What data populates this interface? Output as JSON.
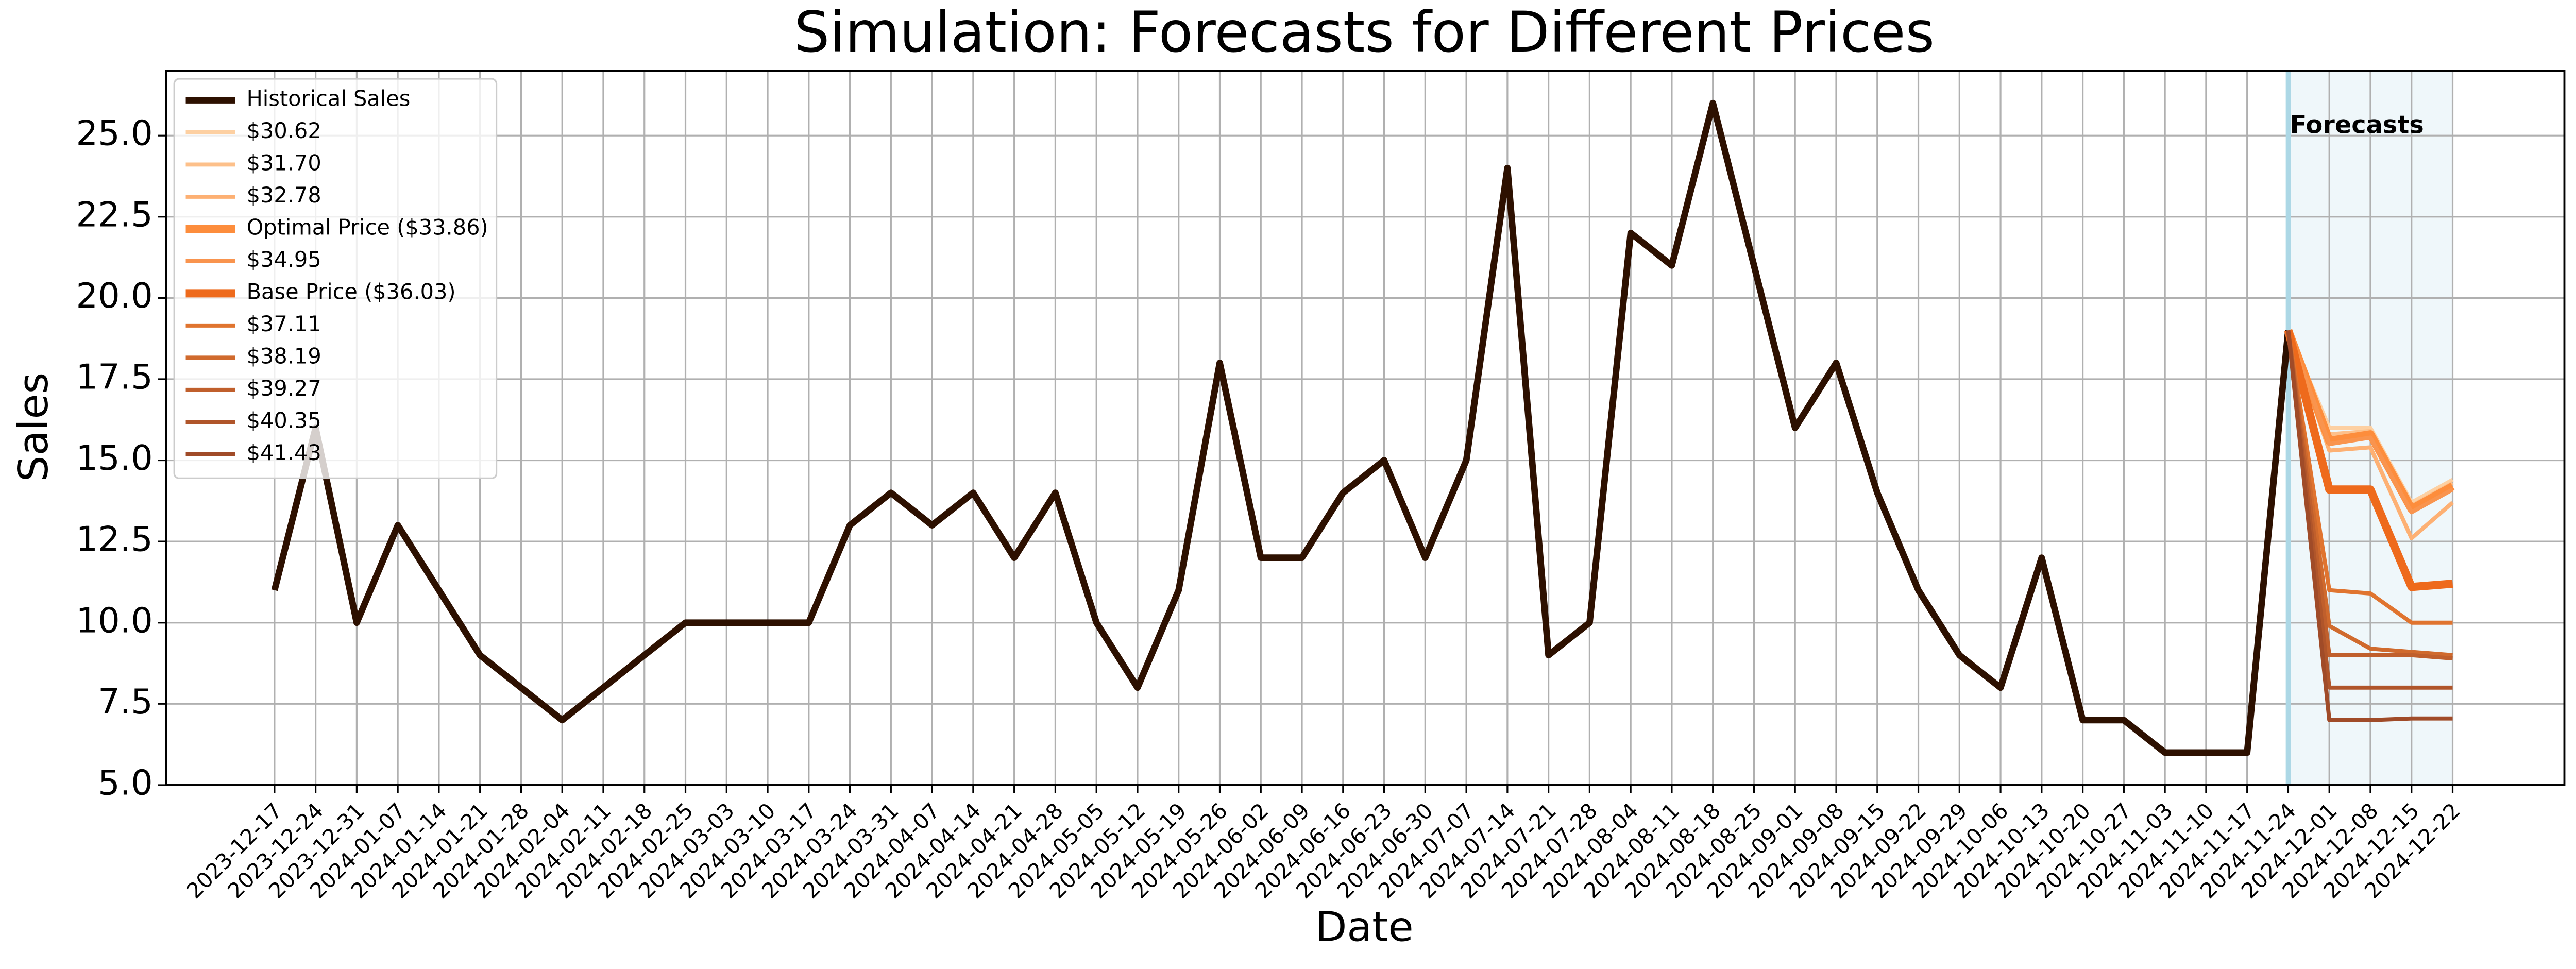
{
  "chart_data": {
    "type": "line",
    "title": "Simulation: Forecasts for Different Prices",
    "x_label": "Date",
    "y_label": "Sales",
    "annotation": "Forecasts",
    "forecast_start_index": 49,
    "forecast_end_index": 53,
    "forecast_region_color": "#add8e6",
    "grid": true,
    "legend": "upper left",
    "categories": [
      "2023-12-17",
      "2023-12-24",
      "2023-12-31",
      "2024-01-07",
      "2024-01-14",
      "2024-01-21",
      "2024-01-28",
      "2024-02-04",
      "2024-02-11",
      "2024-02-18",
      "2024-02-25",
      "2024-03-03",
      "2024-03-10",
      "2024-03-17",
      "2024-03-24",
      "2024-03-31",
      "2024-04-07",
      "2024-04-14",
      "2024-04-21",
      "2024-04-28",
      "2024-05-05",
      "2024-05-12",
      "2024-05-19",
      "2024-05-26",
      "2024-06-02",
      "2024-06-09",
      "2024-06-16",
      "2024-06-23",
      "2024-06-30",
      "2024-07-07",
      "2024-07-14",
      "2024-07-21",
      "2024-07-28",
      "2024-08-04",
      "2024-08-11",
      "2024-08-18",
      "2024-08-25",
      "2024-09-01",
      "2024-09-08",
      "2024-09-15",
      "2024-09-22",
      "2024-09-29",
      "2024-10-06",
      "2024-10-13",
      "2024-10-20",
      "2024-10-27",
      "2024-11-03",
      "2024-11-10",
      "2024-11-17",
      "2024-11-24",
      "2024-12-01",
      "2024-12-08",
      "2024-12-15",
      "2024-12-22"
    ],
    "ylim": [
      5,
      27
    ],
    "yticks": [
      {
        "value": 5,
        "label": "5.0"
      },
      {
        "value": 7.5,
        "label": "7.5"
      },
      {
        "value": 10,
        "label": "10.0"
      },
      {
        "value": 12.5,
        "label": "12.5"
      },
      {
        "value": 15,
        "label": "15.0"
      },
      {
        "value": 17.5,
        "label": "17.5"
      },
      {
        "value": 20,
        "label": "20.0"
      },
      {
        "value": 22.5,
        "label": "22.5"
      },
      {
        "value": 25,
        "label": "25.0"
      }
    ],
    "series": [
      {
        "name": "Historical Sales",
        "color": "#2d1000",
        "linewidth": 4,
        "values": [
          11,
          16,
          10,
          13,
          11,
          9,
          8,
          7,
          8,
          9,
          10,
          10,
          10,
          10,
          13,
          14,
          13,
          14,
          12,
          14,
          10,
          8,
          11,
          18,
          12,
          12,
          14,
          15,
          12,
          15,
          24,
          9,
          10,
          22,
          21,
          26,
          21,
          16,
          18,
          14,
          11,
          9,
          8,
          12,
          7,
          7,
          6,
          6,
          6,
          19,
          null,
          null,
          null,
          null
        ]
      },
      {
        "name": "$30.62",
        "color": "#fdd0a2",
        "linewidth": 2.5,
        "values": [
          null,
          null,
          null,
          null,
          null,
          null,
          null,
          null,
          null,
          null,
          null,
          null,
          null,
          null,
          null,
          null,
          null,
          null,
          null,
          null,
          null,
          null,
          null,
          null,
          null,
          null,
          null,
          null,
          null,
          null,
          null,
          null,
          null,
          null,
          null,
          null,
          null,
          null,
          null,
          null,
          null,
          null,
          null,
          null,
          null,
          null,
          null,
          null,
          null,
          19,
          16.0,
          16.0,
          13.7,
          14.4
        ]
      },
      {
        "name": "$31.70",
        "color": "#fdc08a",
        "linewidth": 2.5,
        "values": [
          null,
          null,
          null,
          null,
          null,
          null,
          null,
          null,
          null,
          null,
          null,
          null,
          null,
          null,
          null,
          null,
          null,
          null,
          null,
          null,
          null,
          null,
          null,
          null,
          null,
          null,
          null,
          null,
          null,
          null,
          null,
          null,
          null,
          null,
          null,
          null,
          null,
          null,
          null,
          null,
          null,
          null,
          null,
          null,
          null,
          null,
          null,
          null,
          null,
          19,
          15.8,
          15.9,
          13.6,
          14.3
        ]
      },
      {
        "name": "$32.78",
        "color": "#fdb073",
        "linewidth": 2.5,
        "values": [
          null,
          null,
          null,
          null,
          null,
          null,
          null,
          null,
          null,
          null,
          null,
          null,
          null,
          null,
          null,
          null,
          null,
          null,
          null,
          null,
          null,
          null,
          null,
          null,
          null,
          null,
          null,
          null,
          null,
          null,
          null,
          null,
          null,
          null,
          null,
          null,
          null,
          null,
          null,
          null,
          null,
          null,
          null,
          null,
          null,
          null,
          null,
          null,
          null,
          19,
          15.3,
          15.4,
          12.6,
          13.7
        ]
      },
      {
        "name": "Optimal Price ($33.86)",
        "color": "#fd8d3c",
        "linewidth": 5,
        "values": [
          null,
          null,
          null,
          null,
          null,
          null,
          null,
          null,
          null,
          null,
          null,
          null,
          null,
          null,
          null,
          null,
          null,
          null,
          null,
          null,
          null,
          null,
          null,
          null,
          null,
          null,
          null,
          null,
          null,
          null,
          null,
          null,
          null,
          null,
          null,
          null,
          null,
          null,
          null,
          null,
          null,
          null,
          null,
          null,
          null,
          null,
          null,
          null,
          null,
          19,
          15.6,
          15.8,
          13.5,
          14.2
        ]
      },
      {
        "name": "$34.95",
        "color": "#f9944e",
        "linewidth": 2.5,
        "values": [
          null,
          null,
          null,
          null,
          null,
          null,
          null,
          null,
          null,
          null,
          null,
          null,
          null,
          null,
          null,
          null,
          null,
          null,
          null,
          null,
          null,
          null,
          null,
          null,
          null,
          null,
          null,
          null,
          null,
          null,
          null,
          null,
          null,
          null,
          null,
          null,
          null,
          null,
          null,
          null,
          null,
          null,
          null,
          null,
          null,
          null,
          null,
          null,
          null,
          19,
          15.5,
          15.7,
          13.4,
          14.1
        ]
      },
      {
        "name": "Base Price ($36.03)",
        "color": "#ee6a1c",
        "linewidth": 5,
        "values": [
          null,
          null,
          null,
          null,
          null,
          null,
          null,
          null,
          null,
          null,
          null,
          null,
          null,
          null,
          null,
          null,
          null,
          null,
          null,
          null,
          null,
          null,
          null,
          null,
          null,
          null,
          null,
          null,
          null,
          null,
          null,
          null,
          null,
          null,
          null,
          null,
          null,
          null,
          null,
          null,
          null,
          null,
          null,
          null,
          null,
          null,
          null,
          null,
          null,
          19,
          14.1,
          14.1,
          11.1,
          11.2
        ]
      },
      {
        "name": "$37.11",
        "color": "#e0742f",
        "linewidth": 2.5,
        "values": [
          null,
          null,
          null,
          null,
          null,
          null,
          null,
          null,
          null,
          null,
          null,
          null,
          null,
          null,
          null,
          null,
          null,
          null,
          null,
          null,
          null,
          null,
          null,
          null,
          null,
          null,
          null,
          null,
          null,
          null,
          null,
          null,
          null,
          null,
          null,
          null,
          null,
          null,
          null,
          null,
          null,
          null,
          null,
          null,
          null,
          null,
          null,
          null,
          null,
          19,
          11.0,
          10.9,
          10.0,
          10.0
        ]
      },
      {
        "name": "$38.19",
        "color": "#d06a2d",
        "linewidth": 2.5,
        "values": [
          null,
          null,
          null,
          null,
          null,
          null,
          null,
          null,
          null,
          null,
          null,
          null,
          null,
          null,
          null,
          null,
          null,
          null,
          null,
          null,
          null,
          null,
          null,
          null,
          null,
          null,
          null,
          null,
          null,
          null,
          null,
          null,
          null,
          null,
          null,
          null,
          null,
          null,
          null,
          null,
          null,
          null,
          null,
          null,
          null,
          null,
          null,
          null,
          null,
          19,
          9.9,
          9.2,
          9.1,
          9.0
        ]
      },
      {
        "name": "$39.27",
        "color": "#c05f2c",
        "linewidth": 2.5,
        "values": [
          null,
          null,
          null,
          null,
          null,
          null,
          null,
          null,
          null,
          null,
          null,
          null,
          null,
          null,
          null,
          null,
          null,
          null,
          null,
          null,
          null,
          null,
          null,
          null,
          null,
          null,
          null,
          null,
          null,
          null,
          null,
          null,
          null,
          null,
          null,
          null,
          null,
          null,
          null,
          null,
          null,
          null,
          null,
          null,
          null,
          null,
          null,
          null,
          null,
          19,
          9.0,
          9.0,
          9.0,
          8.9
        ]
      },
      {
        "name": "$40.35",
        "color": "#b0552a",
        "linewidth": 2.5,
        "values": [
          null,
          null,
          null,
          null,
          null,
          null,
          null,
          null,
          null,
          null,
          null,
          null,
          null,
          null,
          null,
          null,
          null,
          null,
          null,
          null,
          null,
          null,
          null,
          null,
          null,
          null,
          null,
          null,
          null,
          null,
          null,
          null,
          null,
          null,
          null,
          null,
          null,
          null,
          null,
          null,
          null,
          null,
          null,
          null,
          null,
          null,
          null,
          null,
          null,
          19,
          8.0,
          8.0,
          8.0,
          8.0
        ]
      },
      {
        "name": "$41.43",
        "color": "#a04b28",
        "linewidth": 2.5,
        "values": [
          null,
          null,
          null,
          null,
          null,
          null,
          null,
          null,
          null,
          null,
          null,
          null,
          null,
          null,
          null,
          null,
          null,
          null,
          null,
          null,
          null,
          null,
          null,
          null,
          null,
          null,
          null,
          null,
          null,
          null,
          null,
          null,
          null,
          null,
          null,
          null,
          null,
          null,
          null,
          null,
          null,
          null,
          null,
          null,
          null,
          null,
          null,
          null,
          null,
          19,
          7.0,
          7.0,
          7.05,
          7.05
        ]
      }
    ]
  }
}
